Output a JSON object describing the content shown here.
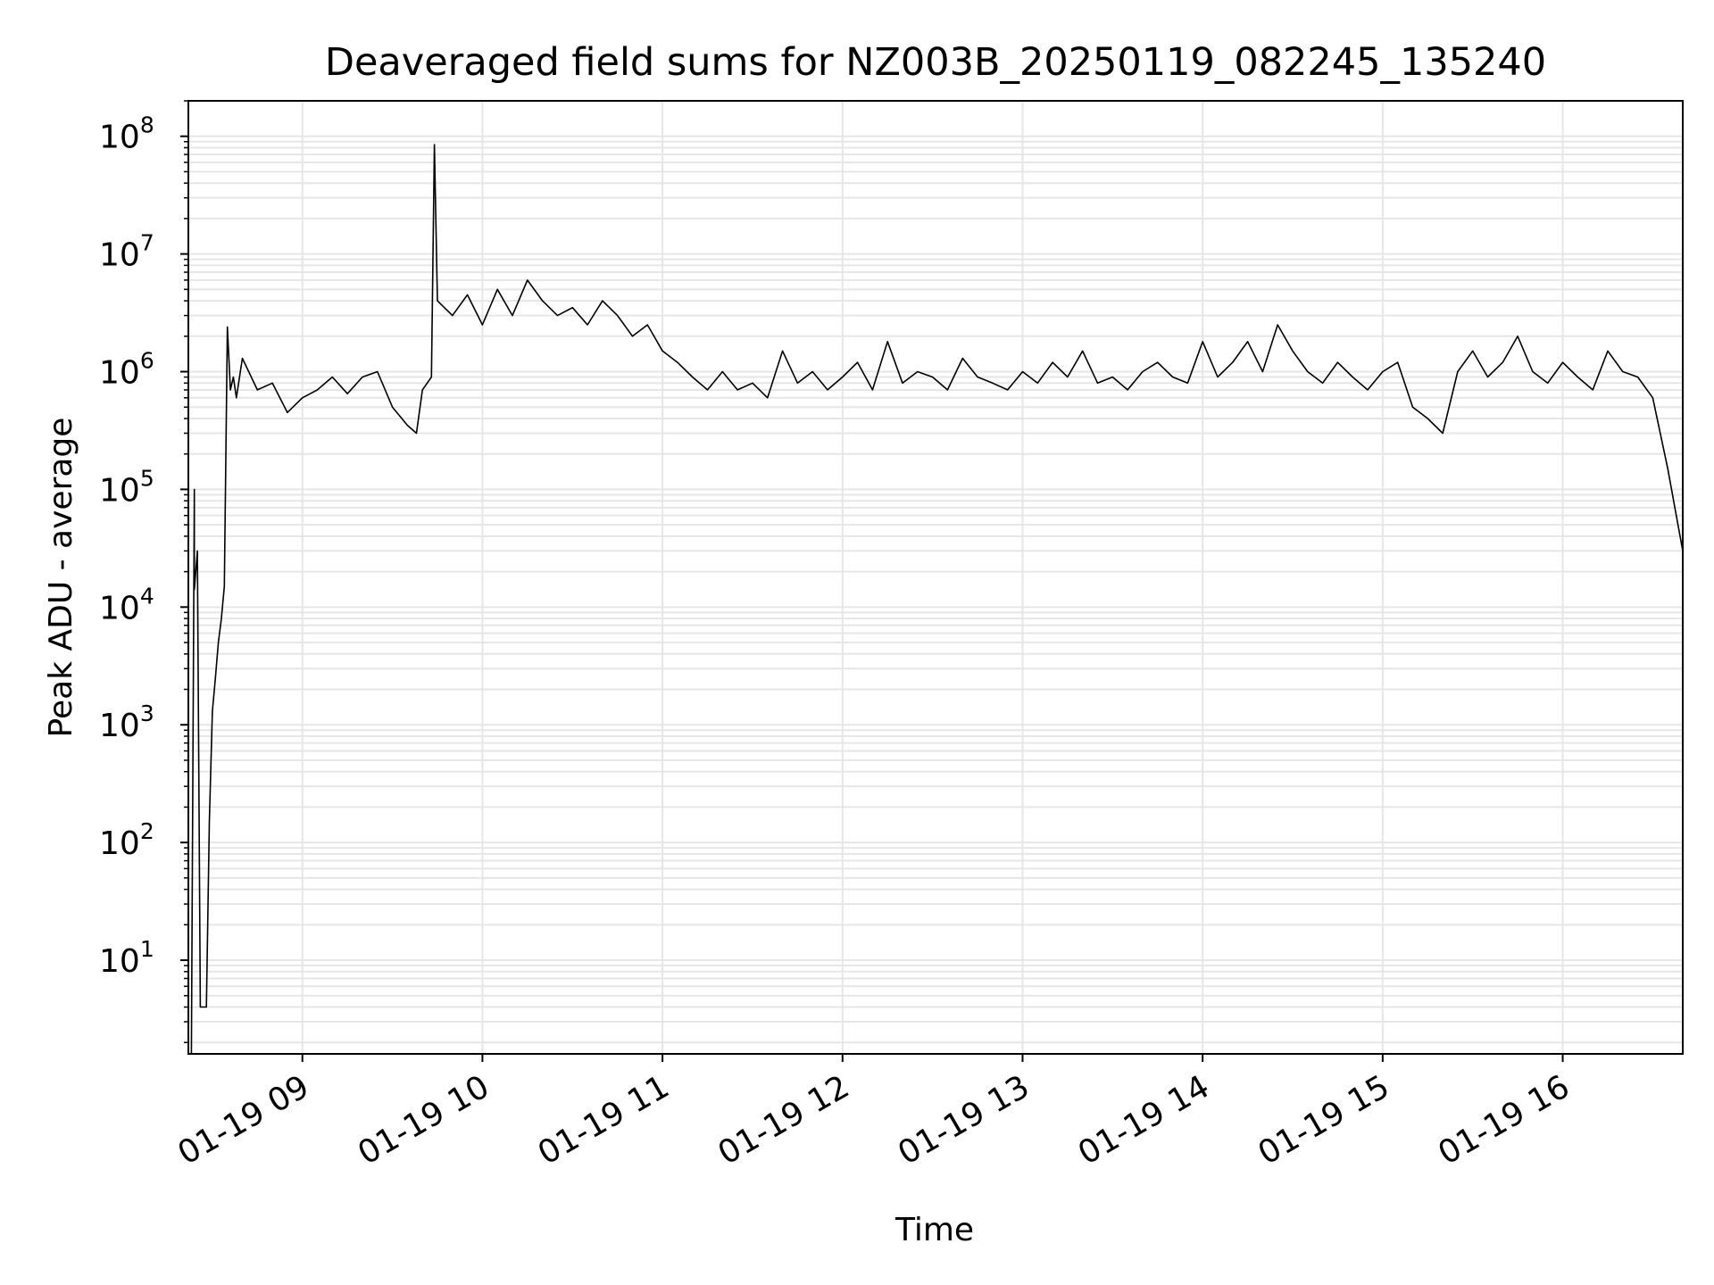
{
  "chart_data": {
    "type": "line",
    "title": "Deaveraged field sums for NZ003B_20250119_082245_135240",
    "xlabel": "Time",
    "ylabel": "Peak ADU - average",
    "yscale": "log",
    "ylim": [
      1.6,
      200000000
    ],
    "xlim": [
      "2025-01-19 08:22",
      "2025-01-19 16:40"
    ],
    "grid": true,
    "line_color": "#000000",
    "grid_color": "#e6e6e6",
    "x_ticks": [
      "01-19 09",
      "01-19 10",
      "01-19 11",
      "01-19 12",
      "01-19 13",
      "01-19 14",
      "01-19 15",
      "01-19 16"
    ],
    "y_ticks": [
      {
        "base": "10",
        "exp": "1",
        "value": 10
      },
      {
        "base": "10",
        "exp": "2",
        "value": 100
      },
      {
        "base": "10",
        "exp": "3",
        "value": 1000
      },
      {
        "base": "10",
        "exp": "4",
        "value": 10000
      },
      {
        "base": "10",
        "exp": "5",
        "value": 100000
      },
      {
        "base": "10",
        "exp": "6",
        "value": 1000000
      },
      {
        "base": "10",
        "exp": "7",
        "value": 10000000
      },
      {
        "base": "10",
        "exp": "8",
        "value": 100000000
      }
    ],
    "series": [
      {
        "x": [
          "08:23",
          "08:24",
          "08:24",
          "08:25",
          "08:26",
          "08:27",
          "08:28",
          "08:29",
          "08:30",
          "08:31",
          "08:32",
          "08:33",
          "08:34",
          "08:35",
          "08:36",
          "08:37",
          "08:38",
          "08:40",
          "08:45",
          "08:50",
          "08:55",
          "09:00",
          "09:05",
          "09:10",
          "09:15",
          "09:20",
          "09:25",
          "09:30",
          "09:35",
          "09:38",
          "09:40",
          "09:43",
          "09:44",
          "09:45",
          "09:50",
          "09:55",
          "10:00",
          "10:05",
          "10:10",
          "10:15",
          "10:20",
          "10:25",
          "10:30",
          "10:35",
          "10:40",
          "10:45",
          "10:50",
          "10:55",
          "11:00",
          "11:05",
          "11:10",
          "11:15",
          "11:20",
          "11:25",
          "11:30",
          "11:35",
          "11:40",
          "11:45",
          "11:50",
          "11:55",
          "12:00",
          "12:05",
          "12:10",
          "12:15",
          "12:20",
          "12:25",
          "12:30",
          "12:35",
          "12:40",
          "12:45",
          "12:50",
          "12:55",
          "13:00",
          "13:05",
          "13:10",
          "13:15",
          "13:20",
          "13:25",
          "13:30",
          "13:35",
          "13:40",
          "13:45",
          "13:50",
          "13:55",
          "14:00",
          "14:05",
          "14:10",
          "14:15",
          "14:20",
          "14:25",
          "14:30",
          "14:35",
          "14:40",
          "14:45",
          "14:50",
          "14:55",
          "15:00",
          "15:05",
          "15:10",
          "15:15",
          "15:20",
          "15:25",
          "15:30",
          "15:35",
          "15:40",
          "15:45",
          "15:50",
          "15:55",
          "16:00",
          "16:05",
          "16:10",
          "16:15",
          "16:20",
          "16:25",
          "16:30",
          "16:35",
          "16:40"
        ],
        "y": [
          1.6,
          100000,
          14000,
          30000,
          4,
          4,
          4,
          150,
          1300,
          2500,
          5000,
          8000,
          15000,
          2400000,
          700000,
          900000,
          600000,
          1300000,
          700000,
          800000,
          450000,
          600000,
          700000,
          900000,
          650000,
          900000,
          1000000,
          500000,
          350000,
          300000,
          700000,
          900000,
          85000000,
          4000000,
          3000000,
          4500000,
          2500000,
          5000000,
          3000000,
          6000000,
          4000000,
          3000000,
          3500000,
          2500000,
          4000000,
          3000000,
          2000000,
          2500000,
          1500000,
          1200000,
          900000,
          700000,
          1000000,
          700000,
          800000,
          600000,
          1500000,
          800000,
          1000000,
          700000,
          900000,
          1200000,
          700000,
          1800000,
          800000,
          1000000,
          900000,
          700000,
          1300000,
          900000,
          800000,
          700000,
          1000000,
          800000,
          1200000,
          900000,
          1500000,
          800000,
          900000,
          700000,
          1000000,
          1200000,
          900000,
          800000,
          1800000,
          900000,
          1200000,
          1800000,
          1000000,
          2500000,
          1500000,
          1000000,
          800000,
          1200000,
          900000,
          700000,
          1000000,
          1200000,
          500000,
          400000,
          300000,
          1000000,
          1500000,
          900000,
          1200000,
          2000000,
          1000000,
          800000,
          1200000,
          900000,
          700000,
          1500000,
          1000000,
          900000,
          600000,
          150000,
          30000
        ]
      }
    ]
  }
}
